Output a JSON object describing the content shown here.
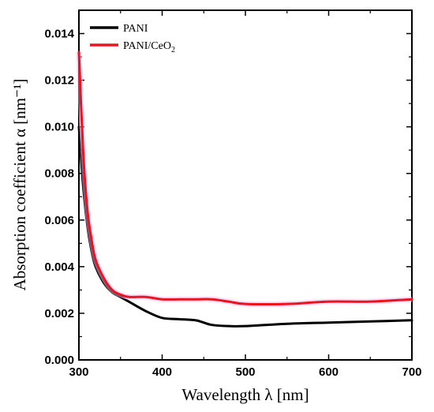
{
  "chart_data": {
    "type": "line",
    "xlabel": "Wavelength λ [nm]",
    "ylabel": "Absorption coefficient α [nm⁻¹]",
    "xlim": [
      300,
      700
    ],
    "ylim": [
      0,
      0.015
    ],
    "x_ticks": [
      300,
      400,
      500,
      600,
      700
    ],
    "x_tick_labels": [
      "300",
      "400",
      "500",
      "600",
      "700"
    ],
    "y_ticks": [
      0,
      0.002,
      0.004,
      0.006,
      0.008,
      0.01,
      0.012,
      0.014
    ],
    "y_tick_labels": [
      "0.000",
      "0.002",
      "0.004",
      "0.006",
      "0.008",
      "0.010",
      "0.012",
      "0.014"
    ],
    "grid": false,
    "legend_position": "top-left",
    "series": [
      {
        "name": "PANI",
        "color": "#000000",
        "x": [
          300,
          305,
          310,
          315,
          320,
          330,
          340,
          350,
          360,
          380,
          400,
          420,
          440,
          450,
          460,
          480,
          500,
          550,
          600,
          650,
          700
        ],
        "y": [
          0.01,
          0.0075,
          0.0058,
          0.0047,
          0.004,
          0.0033,
          0.0029,
          0.0027,
          0.0025,
          0.0021,
          0.0018,
          0.00175,
          0.0017,
          0.0016,
          0.0015,
          0.00145,
          0.00145,
          0.00155,
          0.0016,
          0.00165,
          0.0017
        ]
      },
      {
        "name": "PANI/CeO₂",
        "color": "#e8141e",
        "x": [
          300,
          305,
          310,
          315,
          320,
          330,
          340,
          350,
          360,
          380,
          400,
          420,
          440,
          460,
          480,
          500,
          550,
          600,
          650,
          700
        ],
        "y": [
          0.0132,
          0.009,
          0.0065,
          0.0052,
          0.0043,
          0.0035,
          0.003,
          0.0028,
          0.0027,
          0.0027,
          0.0026,
          0.0026,
          0.0026,
          0.0026,
          0.0025,
          0.0024,
          0.0024,
          0.0025,
          0.0025,
          0.0026
        ]
      }
    ],
    "legend": [
      {
        "label_main": "PANI",
        "label_sub": ""
      },
      {
        "label_main": "PANI/CeO",
        "label_sub": "2"
      }
    ]
  }
}
